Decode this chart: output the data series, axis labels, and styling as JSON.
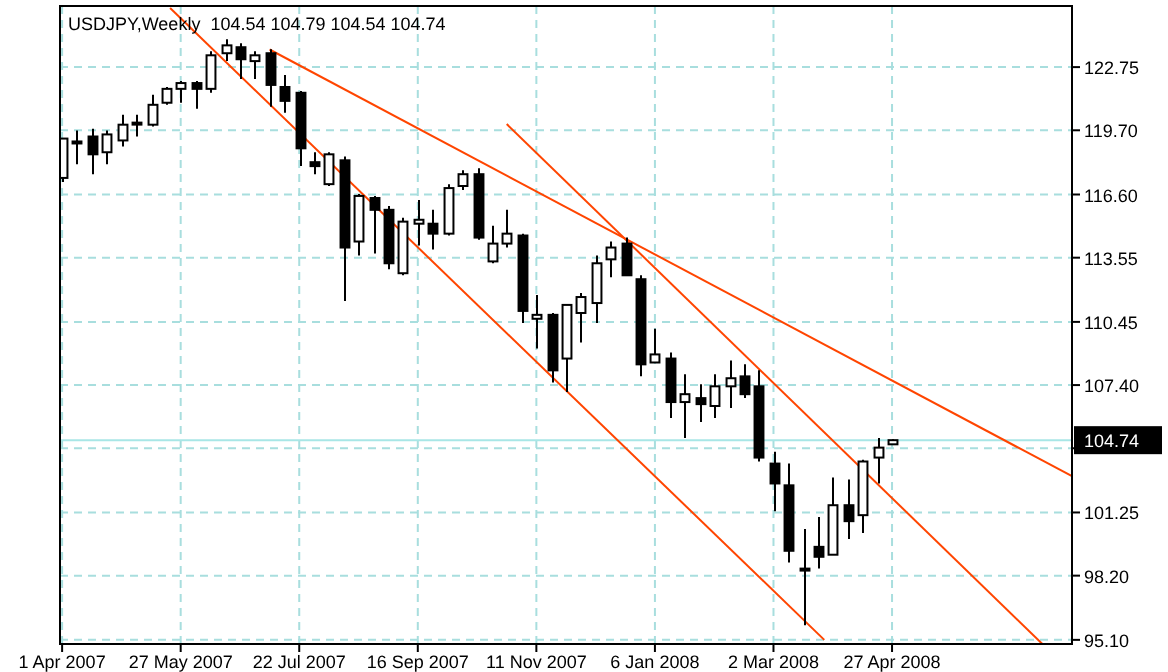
{
  "chart_data": {
    "type": "candlestick",
    "title": "USDJPY,Weekly  104.54 104.79 104.54 104.74",
    "x": [
      "2007-04-01",
      "2007-04-08",
      "2007-04-15",
      "2007-04-22",
      "2007-04-29",
      "2007-05-06",
      "2007-05-13",
      "2007-05-20",
      "2007-05-27",
      "2007-06-03",
      "2007-06-10",
      "2007-06-17",
      "2007-06-24",
      "2007-07-01",
      "2007-07-08",
      "2007-07-15",
      "2007-07-22",
      "2007-07-29",
      "2007-08-05",
      "2007-08-12",
      "2007-08-19",
      "2007-08-26",
      "2007-09-02",
      "2007-09-09",
      "2007-09-16",
      "2007-09-23",
      "2007-09-30",
      "2007-10-07",
      "2007-10-14",
      "2007-10-21",
      "2007-10-28",
      "2007-11-04",
      "2007-11-11",
      "2007-11-18",
      "2007-11-25",
      "2007-12-02",
      "2007-12-09",
      "2007-12-16",
      "2007-12-23",
      "2007-12-30",
      "2008-01-06",
      "2008-01-13",
      "2008-01-20",
      "2008-01-27",
      "2008-02-03",
      "2008-02-10",
      "2008-02-17",
      "2008-02-24",
      "2008-03-02",
      "2008-03-09",
      "2008-03-16",
      "2008-03-23",
      "2008-03-30",
      "2008-04-06",
      "2008-04-13",
      "2008-04-20",
      "2008-04-27"
    ],
    "ohlc": [
      [
        117.4,
        119.3,
        117.2,
        119.3
      ],
      [
        119.16,
        119.69,
        118.06,
        119.07
      ],
      [
        119.4,
        119.78,
        117.58,
        118.54
      ],
      [
        118.64,
        119.69,
        118.06,
        119.5
      ],
      [
        119.21,
        120.45,
        118.92,
        119.97
      ],
      [
        120.07,
        120.45,
        119.4,
        120.02
      ],
      [
        119.97,
        121.41,
        119.88,
        120.93
      ],
      [
        121.03,
        121.79,
        120.93,
        121.7
      ],
      [
        121.7,
        122.08,
        121.03,
        121.98
      ],
      [
        121.98,
        122.08,
        120.74,
        121.7
      ],
      [
        121.7,
        123.52,
        121.51,
        123.32
      ],
      [
        123.42,
        124.09,
        123.04,
        123.8
      ],
      [
        123.71,
        123.9,
        122.18,
        123.13
      ],
      [
        123.04,
        123.52,
        122.18,
        123.32
      ],
      [
        123.42,
        123.61,
        120.84,
        121.89
      ],
      [
        121.79,
        122.37,
        120.55,
        121.12
      ],
      [
        121.51,
        121.6,
        117.97,
        118.83
      ],
      [
        118.16,
        118.64,
        117.58,
        117.97
      ],
      [
        117.1,
        118.64,
        117.01,
        118.54
      ],
      [
        118.25,
        118.44,
        111.46,
        114.04
      ],
      [
        114.33,
        116.63,
        113.66,
        116.53
      ],
      [
        116.43,
        116.53,
        113.75,
        115.86
      ],
      [
        115.86,
        116.05,
        112.99,
        113.28
      ],
      [
        112.8,
        115.48,
        112.7,
        115.29
      ],
      [
        115.19,
        116.34,
        114.14,
        115.38
      ],
      [
        115.19,
        115.86,
        113.95,
        114.71
      ],
      [
        114.71,
        117.1,
        114.62,
        116.91
      ],
      [
        117.01,
        117.77,
        116.82,
        117.58
      ],
      [
        117.58,
        117.87,
        114.42,
        114.52
      ],
      [
        113.37,
        115.09,
        113.28,
        114.23
      ],
      [
        114.23,
        115.86,
        114.04,
        114.71
      ],
      [
        114.62,
        114.71,
        110.4,
        110.98
      ],
      [
        110.6,
        111.75,
        109.16,
        110.79
      ],
      [
        110.79,
        110.88,
        107.53,
        108.11
      ],
      [
        108.68,
        111.27,
        107.06,
        111.27
      ],
      [
        110.88,
        111.84,
        109.45,
        111.65
      ],
      [
        111.36,
        113.66,
        110.4,
        113.28
      ],
      [
        113.47,
        114.33,
        112.61,
        114.04
      ],
      [
        114.23,
        114.52,
        112.7,
        112.7
      ],
      [
        112.51,
        112.7,
        107.82,
        108.4
      ],
      [
        108.49,
        110.12,
        108.49,
        108.88
      ],
      [
        108.68,
        108.97,
        105.81,
        106.58
      ],
      [
        106.58,
        107.92,
        104.85,
        106.96
      ],
      [
        106.77,
        107.44,
        105.62,
        106.48
      ],
      [
        106.39,
        107.92,
        105.81,
        107.34
      ],
      [
        107.34,
        108.59,
        106.29,
        107.73
      ],
      [
        107.82,
        108.4,
        106.77,
        106.96
      ],
      [
        107.34,
        108.11,
        103.71,
        103.9
      ],
      [
        103.61,
        104.18,
        101.31,
        102.65
      ],
      [
        102.56,
        103.61,
        98.83,
        99.4
      ],
      [
        98.54,
        100.45,
        95.8,
        98.5
      ],
      [
        99.59,
        101.03,
        98.54,
        99.11
      ],
      [
        99.21,
        102.94,
        99.21,
        101.6
      ],
      [
        101.6,
        102.84,
        99.97,
        100.83
      ],
      [
        101.12,
        103.8,
        100.26,
        103.71
      ],
      [
        103.9,
        104.85,
        102.65,
        104.38
      ],
      [
        104.54,
        104.79,
        104.54,
        104.74
      ]
    ],
    "series": [
      {
        "type": "line",
        "color": "#ff4500",
        "x": [
          "2007-07-08",
          "2008-07-21"
        ],
        "values": [
          123.6,
          103.0
        ]
      },
      {
        "type": "line",
        "color": "#ff4500",
        "x": [
          "2007-10-28",
          "2008-07-07"
        ],
        "values": [
          120.0,
          94.9
        ]
      },
      {
        "type": "line",
        "color": "#ff4500",
        "x": [
          "2007-05-22",
          "2008-03-26"
        ],
        "values": [
          125.6,
          95.1
        ]
      }
    ],
    "xlim": [
      "2007-03-31",
      "2008-07-21"
    ],
    "xticks": [
      {
        "value": "2007-04-01",
        "label": "1 Apr 2007"
      },
      {
        "value": "2007-05-27",
        "label": "27 May 2007"
      },
      {
        "value": "2007-07-22",
        "label": "22 Jul 2007"
      },
      {
        "value": "2007-09-16",
        "label": "16 Sep 2007"
      },
      {
        "value": "2007-11-11",
        "label": "11 Nov 2007"
      },
      {
        "value": "2008-01-06",
        "label": "6 Jan 2008"
      },
      {
        "value": "2008-03-02",
        "label": "2 Mar 2008"
      },
      {
        "value": "2008-04-27",
        "label": "27 Apr 2008"
      }
    ],
    "ylim": [
      94.9,
      125.7
    ],
    "yticks": [
      {
        "value": 95.1,
        "label": "95.10"
      },
      {
        "value": 98.2,
        "label": "98.20"
      },
      101.25,
      {
        "value": 104.35,
        "label": null
      },
      110.45,
      {
        "value": 107.4,
        "label": "107.40"
      },
      113.55,
      {
        "value": 116.6,
        "label": "116.60"
      },
      {
        "value": 119.7,
        "label": "119.70"
      },
      122.75
    ],
    "ref_lines": [
      {
        "axis": "y",
        "value": 104.74,
        "label": "104.74",
        "color": "#a8e6e6"
      }
    ],
    "grid": true
  }
}
